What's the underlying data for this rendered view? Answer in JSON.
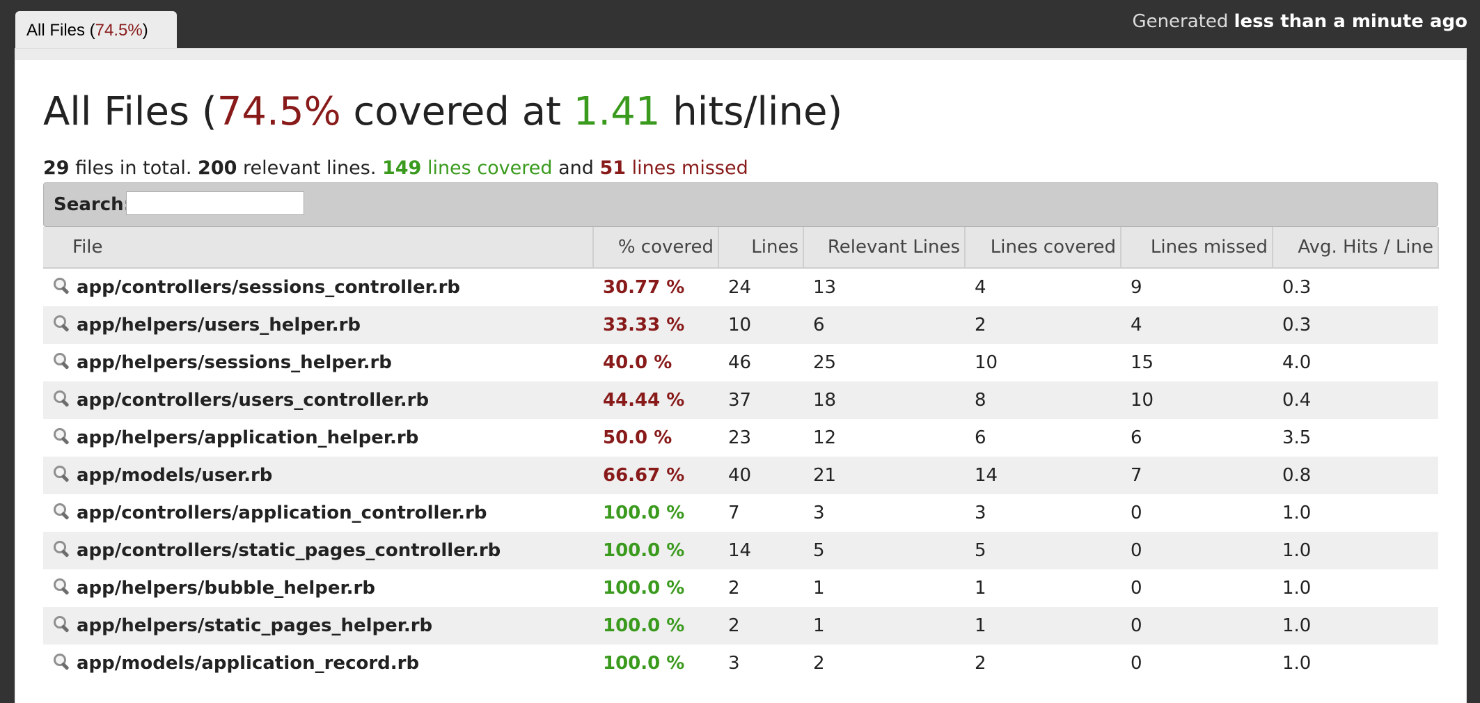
{
  "tab": {
    "prefix": "All Files (",
    "percent": "74.5%",
    "suffix": ")"
  },
  "generated": {
    "prefix": "Generated ",
    "time": "less than a minute ago"
  },
  "heading": {
    "prefix": "All Files (",
    "percent": "74.5%",
    "middle": " covered at ",
    "hits": "1.41",
    "suffix": " hits/line)"
  },
  "summary": {
    "files_count": "29",
    "files_text": " files in total. ",
    "relevant_count": "200",
    "relevant_text": " relevant lines. ",
    "covered_count": "149",
    "covered_text": " lines covered",
    "and_text": " and ",
    "missed_count": "51",
    "missed_text": " lines missed"
  },
  "search": {
    "label": "Search:",
    "value": ""
  },
  "columns": [
    "File",
    "% covered",
    "Lines",
    "Relevant Lines",
    "Lines covered",
    "Lines missed",
    "Avg. Hits / Line"
  ],
  "colors": {
    "low": "#881a1a",
    "high": "#3a9a1d"
  },
  "rows": [
    {
      "file": "app/controllers/sessions_controller.rb",
      "covered": "30.77 %",
      "status": "low",
      "lines": "24",
      "relevant": "13",
      "lines_covered": "4",
      "lines_missed": "9",
      "avg_hits": "0.3"
    },
    {
      "file": "app/helpers/users_helper.rb",
      "covered": "33.33 %",
      "status": "low",
      "lines": "10",
      "relevant": "6",
      "lines_covered": "2",
      "lines_missed": "4",
      "avg_hits": "0.3"
    },
    {
      "file": "app/helpers/sessions_helper.rb",
      "covered": "40.0 %",
      "status": "low",
      "lines": "46",
      "relevant": "25",
      "lines_covered": "10",
      "lines_missed": "15",
      "avg_hits": "4.0"
    },
    {
      "file": "app/controllers/users_controller.rb",
      "covered": "44.44 %",
      "status": "low",
      "lines": "37",
      "relevant": "18",
      "lines_covered": "8",
      "lines_missed": "10",
      "avg_hits": "0.4"
    },
    {
      "file": "app/helpers/application_helper.rb",
      "covered": "50.0 %",
      "status": "low",
      "lines": "23",
      "relevant": "12",
      "lines_covered": "6",
      "lines_missed": "6",
      "avg_hits": "3.5"
    },
    {
      "file": "app/models/user.rb",
      "covered": "66.67 %",
      "status": "low",
      "lines": "40",
      "relevant": "21",
      "lines_covered": "14",
      "lines_missed": "7",
      "avg_hits": "0.8"
    },
    {
      "file": "app/controllers/application_controller.rb",
      "covered": "100.0 %",
      "status": "high",
      "lines": "7",
      "relevant": "3",
      "lines_covered": "3",
      "lines_missed": "0",
      "avg_hits": "1.0"
    },
    {
      "file": "app/controllers/static_pages_controller.rb",
      "covered": "100.0 %",
      "status": "high",
      "lines": "14",
      "relevant": "5",
      "lines_covered": "5",
      "lines_missed": "0",
      "avg_hits": "1.0"
    },
    {
      "file": "app/helpers/bubble_helper.rb",
      "covered": "100.0 %",
      "status": "high",
      "lines": "2",
      "relevant": "1",
      "lines_covered": "1",
      "lines_missed": "0",
      "avg_hits": "1.0"
    },
    {
      "file": "app/helpers/static_pages_helper.rb",
      "covered": "100.0 %",
      "status": "high",
      "lines": "2",
      "relevant": "1",
      "lines_covered": "1",
      "lines_missed": "0",
      "avg_hits": "1.0"
    },
    {
      "file": "app/models/application_record.rb",
      "covered": "100.0 %",
      "status": "high",
      "lines": "3",
      "relevant": "2",
      "lines_covered": "2",
      "lines_missed": "0",
      "avg_hits": "1.0"
    }
  ]
}
